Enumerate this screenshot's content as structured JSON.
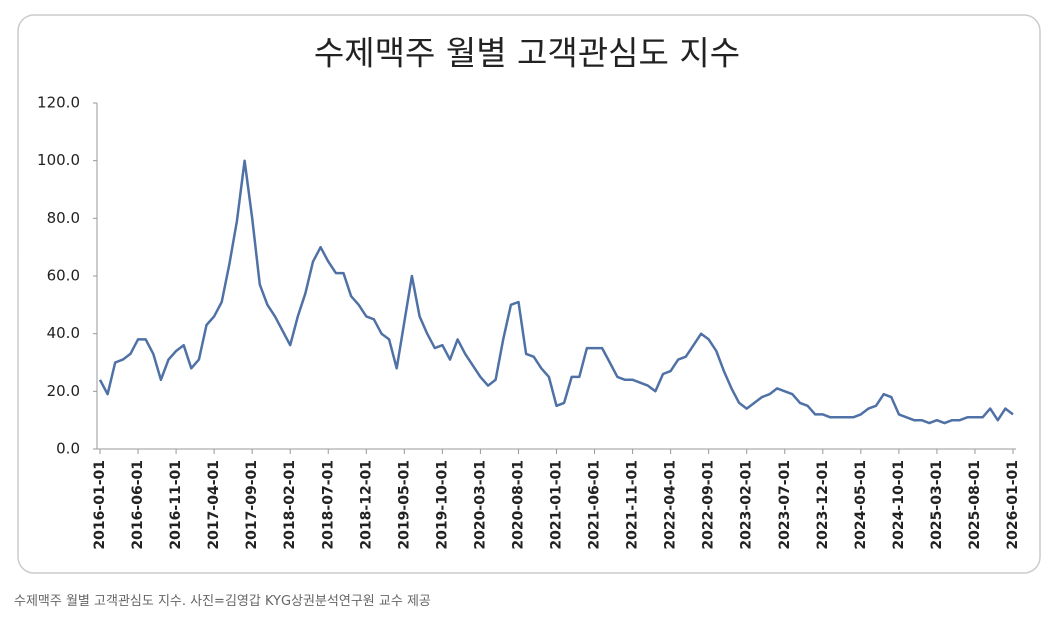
{
  "chart_data": {
    "type": "line",
    "title": "수제맥주 월별 고객관심도 지수",
    "categories": [
      "2016-01-01",
      null,
      null,
      null,
      null,
      "2016-06-01",
      null,
      null,
      null,
      null,
      "2016-11-01",
      null,
      null,
      null,
      null,
      "2017-04-01",
      null,
      null,
      null,
      null,
      "2017-09-01",
      null,
      null,
      null,
      null,
      "2018-02-01",
      null,
      null,
      null,
      null,
      "2018-07-01",
      null,
      null,
      null,
      null,
      "2018-12-01",
      null,
      null,
      null,
      null,
      "2019-05-01",
      null,
      null,
      null,
      null,
      "2019-10-01",
      null,
      null,
      null,
      null,
      "2020-03-01",
      null,
      null,
      null,
      null,
      "2020-08-01",
      null,
      null,
      null,
      null,
      "2021-01-01",
      null,
      null,
      null,
      null,
      "2021-06-01",
      null,
      null,
      null,
      null,
      "2021-11-01",
      null,
      null,
      null,
      null,
      "2022-04-01",
      null,
      null,
      null,
      null,
      "2022-09-01",
      null,
      null,
      null,
      null,
      "2023-02-01",
      null,
      null,
      null,
      null,
      "2023-07-01",
      null,
      null,
      null,
      null,
      "2023-12-01",
      null,
      null,
      null,
      null,
      "2024-05-01",
      null,
      null,
      null,
      null,
      "2024-10-01",
      null,
      null,
      null,
      null,
      "2025-03-01",
      null,
      null,
      null,
      null,
      "2025-08-01",
      null,
      null,
      null,
      null,
      "2026-01-01"
    ],
    "values": [
      24,
      19,
      30,
      31,
      33,
      38,
      38,
      33,
      24,
      31,
      34,
      36,
      28,
      31,
      43,
      46,
      51,
      64,
      79,
      100,
      80,
      57,
      50,
      46,
      41,
      36,
      46,
      54,
      65,
      70,
      65,
      61,
      61,
      53,
      50,
      46,
      45,
      40,
      38,
      28,
      44,
      60,
      46,
      40,
      35,
      36,
      31,
      38,
      33,
      29,
      25,
      22,
      24,
      38,
      50,
      51,
      33,
      32,
      28,
      25,
      15,
      16,
      25,
      25,
      35,
      35,
      35,
      30,
      25,
      24,
      24,
      23,
      22,
      20,
      26,
      27,
      31,
      32,
      36,
      40,
      38,
      34,
      27,
      21,
      16,
      14,
      16,
      18,
      19,
      21,
      20,
      19,
      16,
      15,
      12,
      12,
      11,
      11,
      11,
      11,
      12,
      14,
      15,
      19,
      18,
      12,
      11,
      10,
      10,
      9,
      10,
      9,
      10,
      10,
      11,
      11,
      11,
      14,
      10,
      14,
      12
    ],
    "color": "#4f71a6",
    "ylim": [
      0,
      120
    ],
    "yticks": [
      {
        "value": 0,
        "label": "0.0"
      },
      {
        "value": 20,
        "label": "20.0"
      },
      {
        "value": 40,
        "label": "40.0"
      },
      {
        "value": 60,
        "label": "60.0"
      },
      {
        "value": 80,
        "label": "80.0"
      },
      {
        "value": 100,
        "label": "100.0"
      },
      {
        "value": 120,
        "label": "120.0"
      }
    ],
    "grid": false
  },
  "caption": "수제맥주 월별 고객관심도 지수. 사진=김영갑 KYG상권분석연구원 교수 제공"
}
